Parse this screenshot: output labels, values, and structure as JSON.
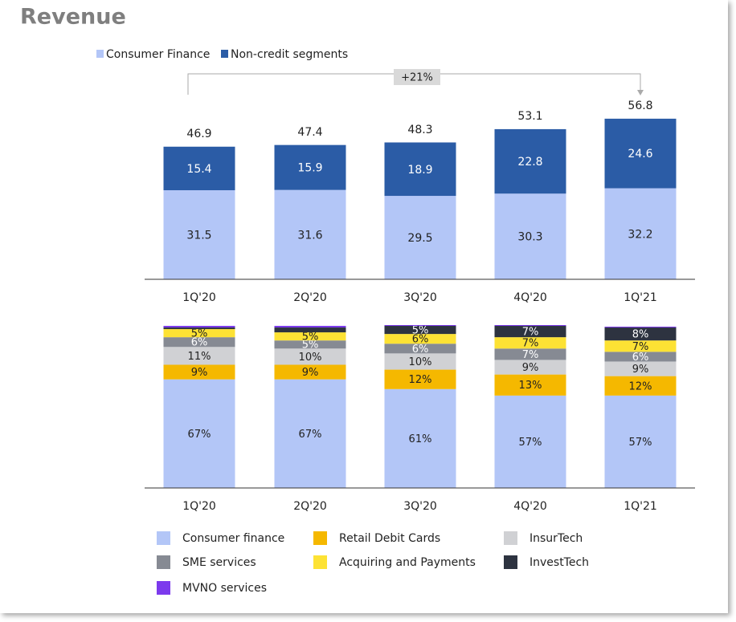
{
  "chart_data": [
    {
      "type": "stacked_bar",
      "title": "Revenue",
      "categories": [
        "1Q'20",
        "2Q'20",
        "3Q'20",
        "4Q'20",
        "1Q'21"
      ],
      "series": [
        {
          "name": "Consumer Finance",
          "color": "#b3c6f7",
          "values": [
            31.5,
            31.6,
            29.5,
            30.3,
            32.2
          ]
        },
        {
          "name": "Non-credit segments",
          "color": "#2b5ca6",
          "values": [
            15.4,
            15.9,
            18.9,
            22.8,
            24.6
          ]
        }
      ],
      "totals": [
        46.9,
        47.4,
        48.3,
        53.1,
        56.8
      ],
      "annotation": "+21%",
      "ylim": [
        0,
        65
      ]
    },
    {
      "type": "stacked_bar",
      "categories": [
        "1Q'20",
        "2Q'20",
        "3Q'20",
        "4Q'20",
        "1Q'21"
      ],
      "series": [
        {
          "name": "Consumer finance",
          "color": "#b3c6f7",
          "values": [
            67,
            67,
            61,
            57,
            57
          ],
          "value_labels": [
            "67%",
            "67%",
            "61%",
            "57%",
            "57%"
          ]
        },
        {
          "name": "Retail Debit Cards",
          "color": "#f5b800",
          "values": [
            9,
            9,
            12,
            13,
            12
          ],
          "value_labels": [
            "9%",
            "9%",
            "12%",
            "13%",
            "12%"
          ]
        },
        {
          "name": "InsurTech",
          "color": "#d0d1d4",
          "values": [
            11,
            10,
            10,
            9,
            9
          ],
          "value_labels": [
            "11%",
            "10%",
            "10%",
            "9%",
            "9%"
          ]
        },
        {
          "name": "SME services",
          "color": "#868a93",
          "values": [
            6,
            5,
            6,
            7,
            6
          ],
          "value_labels": [
            "6%",
            "5%",
            "6%",
            "7%",
            "6%"
          ]
        },
        {
          "name": "Acquiring and Payments",
          "color": "#fde234",
          "values": [
            5,
            5,
            6,
            7,
            7
          ],
          "value_labels": [
            "5%",
            "5%",
            "6%",
            "7%",
            "7%"
          ]
        },
        {
          "name": "InvestTech",
          "color": "#2d3340",
          "values": [
            1,
            3,
            5,
            7,
            8
          ],
          "value_labels": [
            null,
            null,
            "5%",
            "7%",
            "8%"
          ]
        },
        {
          "name": "MVNO services",
          "color": "#7c3aed",
          "values": [
            1,
            1,
            0.5,
            0.5,
            0.5
          ],
          "value_labels": [
            null,
            null,
            null,
            null,
            null
          ]
        }
      ],
      "ylim": [
        0,
        101
      ]
    }
  ]
}
